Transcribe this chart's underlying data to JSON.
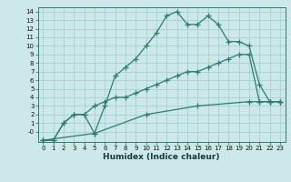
{
  "line1_x": [
    0,
    1,
    2,
    3,
    4,
    5,
    6,
    7,
    8,
    9,
    10,
    11,
    12,
    13,
    14,
    15,
    16,
    17,
    18,
    19,
    20,
    21,
    22,
    23
  ],
  "line1_y": [
    -1,
    -1,
    1,
    2,
    2,
    -0.2,
    3,
    6.5,
    7.5,
    8.5,
    10,
    11.5,
    13.5,
    14,
    12.5,
    12.5,
    13.5,
    12.5,
    10.5,
    10.5,
    10,
    5.5,
    3.5,
    3.5
  ],
  "line2_x": [
    0,
    1,
    2,
    3,
    4,
    5,
    6,
    7,
    8,
    9,
    10,
    11,
    12,
    13,
    14,
    15,
    16,
    17,
    18,
    19,
    20,
    21,
    22,
    23
  ],
  "line2_y": [
    -1,
    -1,
    1,
    2,
    2,
    3,
    3.5,
    4,
    4,
    4.5,
    5,
    5.5,
    6,
    6.5,
    7,
    7,
    7.5,
    8,
    8.5,
    9,
    9,
    3.5,
    3.5,
    3.5
  ],
  "line3_x": [
    0,
    5,
    10,
    15,
    20,
    21,
    22,
    23
  ],
  "line3_y": [
    -1,
    -0.2,
    2,
    3,
    3.5,
    3.5,
    3.5,
    3.5
  ],
  "color": "#2d7d6e",
  "bg_color": "#cce8e8",
  "grid_color": "#9ecece",
  "xlabel": "Humidex (Indice chaleur)",
  "xlim": [
    -0.5,
    23.5
  ],
  "ylim": [
    -1.2,
    14.5
  ],
  "ytick_labels": [
    "-0",
    "1",
    "2",
    "3",
    "4",
    "5",
    "6",
    "7",
    "8",
    "9",
    "10",
    "11",
    "12",
    "13",
    "14"
  ],
  "ytick_vals": [
    -0.0,
    1,
    2,
    3,
    4,
    5,
    6,
    7,
    8,
    9,
    10,
    11,
    12,
    13,
    14
  ],
  "xticks": [
    0,
    1,
    2,
    3,
    4,
    5,
    6,
    7,
    8,
    9,
    10,
    11,
    12,
    13,
    14,
    15,
    16,
    17,
    18,
    19,
    20,
    21,
    22,
    23
  ],
  "marker": "+",
  "markersize": 4,
  "linewidth": 0.9,
  "tick_fontsize": 5.0,
  "xlabel_fontsize": 6.5
}
